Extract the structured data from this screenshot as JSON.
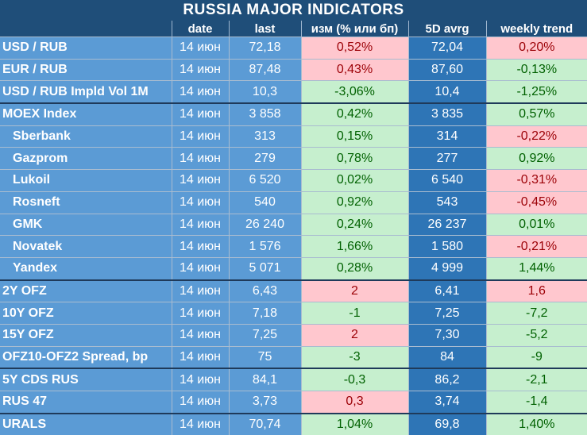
{
  "title": "RUSSIA   MAJOR   INDICATORS",
  "headers": [
    "",
    "date",
    "last",
    "изм (% или бп)",
    "5D avrg",
    "weekly trend"
  ],
  "rows": [
    {
      "name": "USD / RUB",
      "date": "14 июн",
      "last": "72,18",
      "change": "0,52%",
      "change_dir": "neg",
      "avg5d": "72,04",
      "trend": "0,20%",
      "trend_dir": "neg",
      "indent": false,
      "group_start": false
    },
    {
      "name": "EUR / RUB",
      "date": "14 июн",
      "last": "87,48",
      "change": "0,43%",
      "change_dir": "neg",
      "avg5d": "87,60",
      "trend": "-0,13%",
      "trend_dir": "pos",
      "indent": false,
      "group_start": false
    },
    {
      "name": "USD / RUB Impld Vol 1M",
      "date": "14 июн",
      "last": "10,3",
      "change": "-3,06%",
      "change_dir": "pos",
      "avg5d": "10,4",
      "trend": "-1,25%",
      "trend_dir": "pos",
      "indent": false,
      "group_start": false
    },
    {
      "name": "MOEX Index",
      "date": "14 июн",
      "last": "3 858",
      "change": "0,42%",
      "change_dir": "pos",
      "avg5d": "3 835",
      "trend": "0,57%",
      "trend_dir": "pos",
      "indent": false,
      "group_start": true
    },
    {
      "name": "Sberbank",
      "date": "14 июн",
      "last": "313",
      "change": "0,15%",
      "change_dir": "pos",
      "avg5d": "314",
      "trend": "-0,22%",
      "trend_dir": "neg",
      "indent": true,
      "group_start": false
    },
    {
      "name": "Gazprom",
      "date": "14 июн",
      "last": "279",
      "change": "0,78%",
      "change_dir": "pos",
      "avg5d": "277",
      "trend": "0,92%",
      "trend_dir": "pos",
      "indent": true,
      "group_start": false
    },
    {
      "name": "Lukoil",
      "date": "14 июн",
      "last": "6 520",
      "change": "0,02%",
      "change_dir": "pos",
      "avg5d": "6 540",
      "trend": "-0,31%",
      "trend_dir": "neg",
      "indent": true,
      "group_start": false
    },
    {
      "name": "Rosneft",
      "date": "14 июн",
      "last": "540",
      "change": "0,92%",
      "change_dir": "pos",
      "avg5d": "543",
      "trend": "-0,45%",
      "trend_dir": "neg",
      "indent": true,
      "group_start": false
    },
    {
      "name": "GMK",
      "date": "14 июн",
      "last": "26 240",
      "change": "0,24%",
      "change_dir": "pos",
      "avg5d": "26 237",
      "trend": "0,01%",
      "trend_dir": "pos",
      "indent": true,
      "group_start": false
    },
    {
      "name": "Novatek",
      "date": "14 июн",
      "last": "1 576",
      "change": "1,66%",
      "change_dir": "pos",
      "avg5d": "1 580",
      "trend": "-0,21%",
      "trend_dir": "neg",
      "indent": true,
      "group_start": false
    },
    {
      "name": "Yandex",
      "date": "14 июн",
      "last": "5 071",
      "change": "0,28%",
      "change_dir": "pos",
      "avg5d": "4 999",
      "trend": "1,44%",
      "trend_dir": "pos",
      "indent": true,
      "group_start": false
    },
    {
      "name": "2Y OFZ",
      "date": "14 июн",
      "last": "6,43",
      "change": "2",
      "change_dir": "neg",
      "avg5d": "6,41",
      "trend": "1,6",
      "trend_dir": "neg",
      "indent": false,
      "group_start": true
    },
    {
      "name": "10Y OFZ",
      "date": "14 июн",
      "last": "7,18",
      "change": "-1",
      "change_dir": "pos",
      "avg5d": "7,25",
      "trend": "-7,2",
      "trend_dir": "pos",
      "indent": false,
      "group_start": false
    },
    {
      "name": "15Y OFZ",
      "date": "14 июн",
      "last": "7,25",
      "change": "2",
      "change_dir": "neg",
      "avg5d": "7,30",
      "trend": "-5,2",
      "trend_dir": "pos",
      "indent": false,
      "group_start": false
    },
    {
      "name": "OFZ10-OFZ2 Spread, bp",
      "date": "14 июн",
      "last": "75",
      "change": "-3",
      "change_dir": "pos",
      "avg5d": "84",
      "trend": "-9",
      "trend_dir": "pos",
      "indent": false,
      "group_start": false
    },
    {
      "name": "5Y CDS RUS",
      "date": "14 июн",
      "last": "84,1",
      "change": "-0,3",
      "change_dir": "pos",
      "avg5d": "86,2",
      "trend": "-2,1",
      "trend_dir": "pos",
      "indent": false,
      "group_start": true
    },
    {
      "name": "RUS 47",
      "date": "14 июн",
      "last": "3,73",
      "change": "0,3",
      "change_dir": "neg",
      "avg5d": "3,74",
      "trend": "-1,4",
      "trend_dir": "pos",
      "indent": false,
      "group_start": false
    },
    {
      "name": "URALS",
      "date": "14 июн",
      "last": "70,74",
      "change": "1,04%",
      "change_dir": "pos",
      "avg5d": "69,8",
      "trend": "1,40%",
      "trend_dir": "pos",
      "indent": false,
      "group_start": true
    }
  ],
  "colors": {
    "header_bg": "#1f4e79",
    "name_bg": "#5b9bd5",
    "avg_bg": "#2e75b6",
    "positive_bg": "#c6efce",
    "positive_text": "#006100",
    "negative_bg": "#ffc7ce",
    "negative_text": "#9c0006"
  }
}
